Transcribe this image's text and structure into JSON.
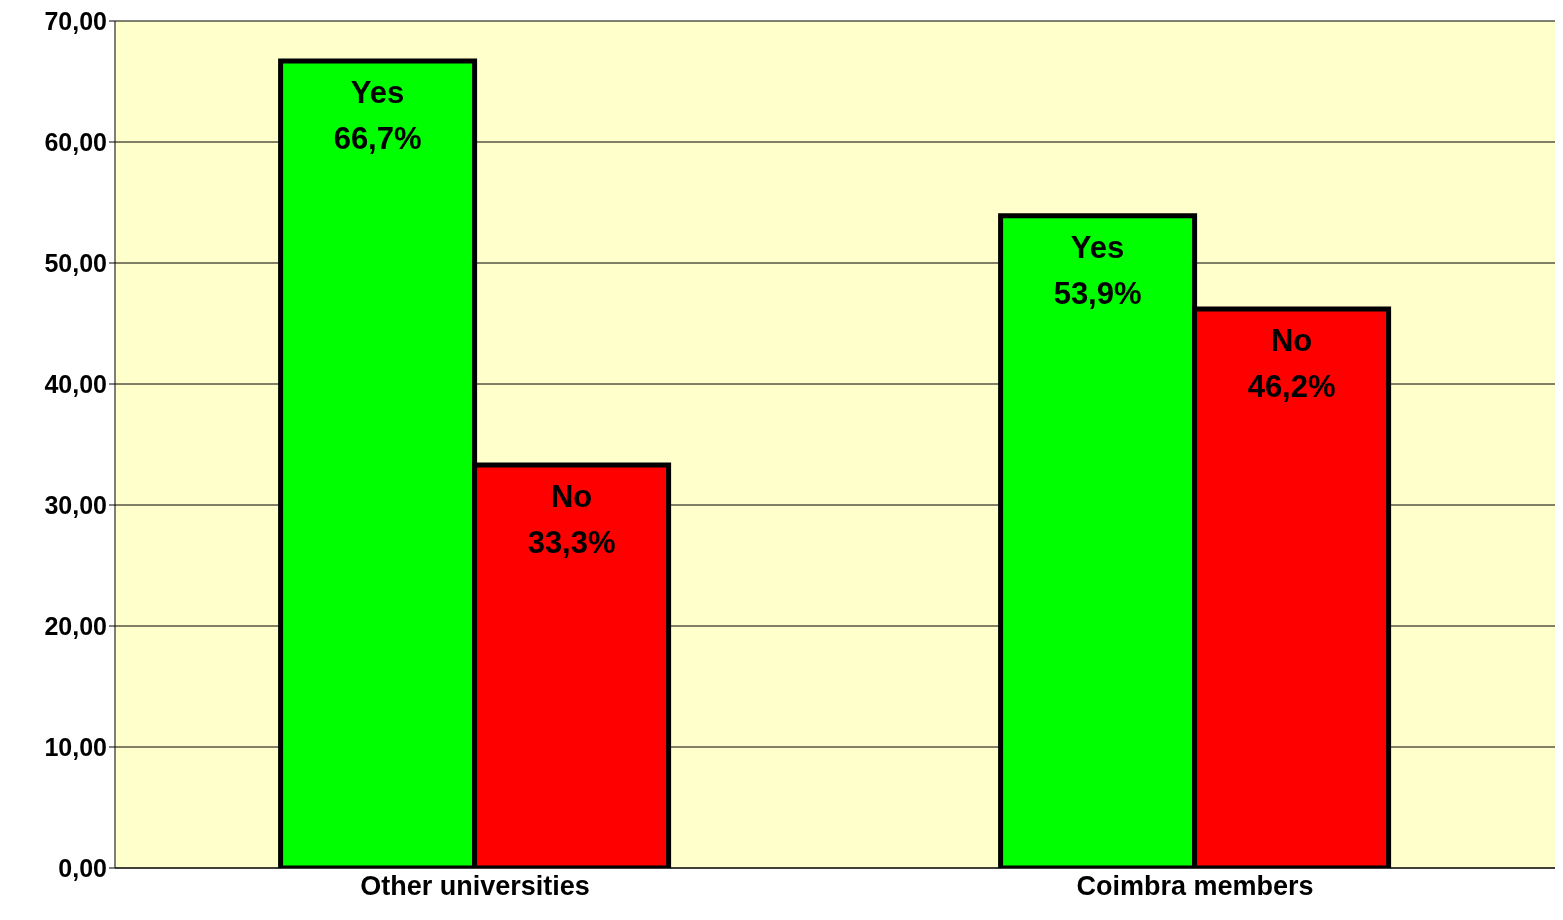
{
  "chart_data": {
    "type": "bar",
    "categories": [
      "Other universities",
      "Coimbra members"
    ],
    "series": [
      {
        "name": "Yes",
        "color": "#00ff00",
        "values": [
          66.7,
          53.9
        ],
        "value_labels": [
          "66,7%",
          "53,9%"
        ]
      },
      {
        "name": "No",
        "color": "#ff0000",
        "values": [
          33.3,
          46.2
        ],
        "value_labels": [
          "33,3%",
          "46,2%"
        ]
      }
    ],
    "ylim": [
      0,
      70
    ],
    "yticks": [
      {
        "value": 0,
        "label": "0,00"
      },
      {
        "value": 10,
        "label": "10,00"
      },
      {
        "value": 20,
        "label": "20,00"
      },
      {
        "value": 30,
        "label": "30,00"
      },
      {
        "value": 40,
        "label": "40,00"
      },
      {
        "value": 50,
        "label": "50,00"
      },
      {
        "value": 60,
        "label": "60,00"
      },
      {
        "value": 70,
        "label": "70,00"
      }
    ],
    "grid": "y",
    "legend": false
  }
}
